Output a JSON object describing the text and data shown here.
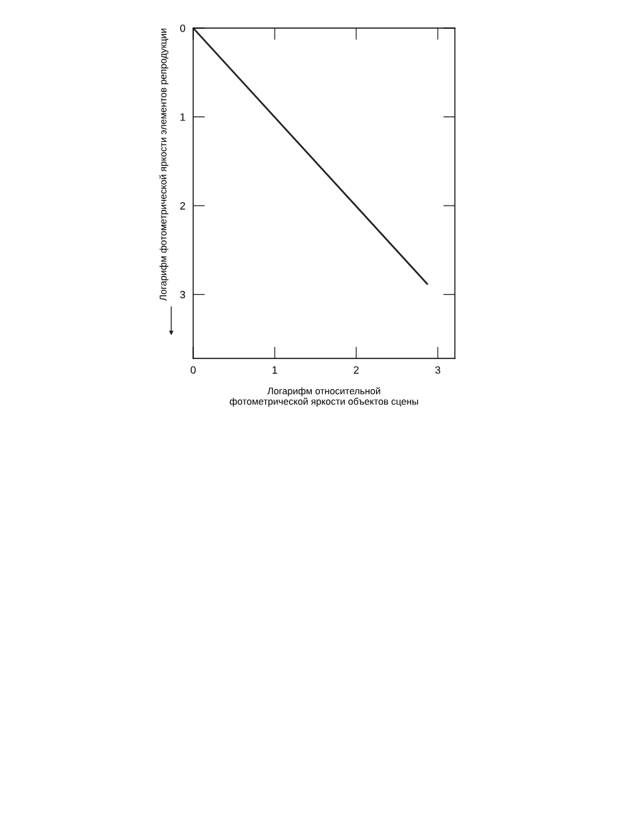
{
  "chart_data": {
    "type": "line",
    "xlabel": "Логарифм относительной\nфотометрической яркости объектов сцены",
    "ylabel": "Логарифм фотометрической яркости элементов репродукции",
    "x": [
      0,
      2.87
    ],
    "series": [
      {
        "color": "#231f20",
        "values": [
          0,
          2.88
        ]
      }
    ],
    "xlim": [
      0,
      3.21
    ],
    "ylim": [
      3.72,
      0
    ],
    "xticks": [
      0,
      1,
      2,
      3
    ],
    "yticks": [
      0,
      1,
      2,
      3
    ],
    "grid": false,
    "legend": false,
    "marker": "none",
    "line_style": "solid"
  }
}
